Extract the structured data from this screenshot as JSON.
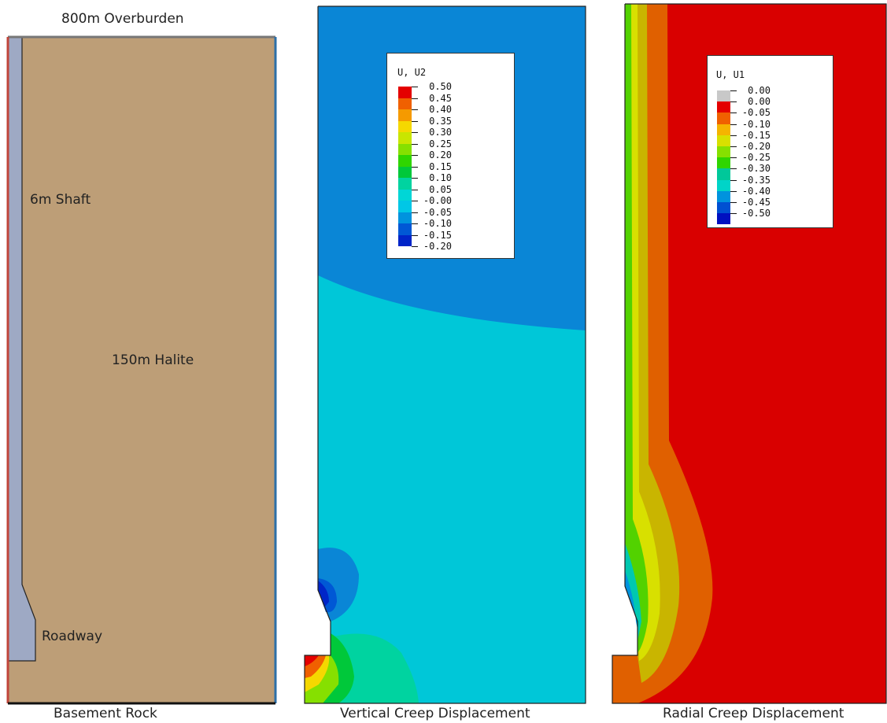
{
  "geometry_panel": {
    "top_label": "800m Overburden",
    "shaft_label": "6m Shaft",
    "halite_label": "150m Halite",
    "roadway_label": "Roadway",
    "caption": "Basement Rock",
    "colors": {
      "halite": "#bd9e77",
      "shaft": "#9ea9c4",
      "left_edge": "#c0453a",
      "right_edge": "#2c6fa8"
    }
  },
  "vertical_panel": {
    "caption": "Vertical Creep Displacement",
    "legend": {
      "title": "U, U2",
      "levels": [
        "0.50",
        "0.45",
        "0.40",
        "0.35",
        "0.30",
        "0.25",
        "0.20",
        "0.15",
        "0.10",
        "0.05",
        "-0.00",
        "-0.05",
        "-0.10",
        "-0.15",
        "-0.20"
      ],
      "colors": [
        "#e40000",
        "#f06000",
        "#f59a00",
        "#f5d800",
        "#c9e600",
        "#86e000",
        "#2fd500",
        "#00c83a",
        "#00d3a0",
        "#00d6d6",
        "#00c7e6",
        "#0093de",
        "#0058d5",
        "#0025c8"
      ]
    }
  },
  "radial_panel": {
    "caption": "Radial Creep Displacement",
    "legend": {
      "title": "U, U1",
      "levels": [
        "0.00",
        "0.00",
        "-0.05",
        "-0.10",
        "-0.15",
        "-0.20",
        "-0.25",
        "-0.30",
        "-0.35",
        "-0.40",
        "-0.45",
        "-0.50"
      ],
      "colors": [
        "#c8c8c8",
        "#e40000",
        "#f06000",
        "#f5b400",
        "#d8e000",
        "#86e000",
        "#2fd500",
        "#00c89a",
        "#00d4c8",
        "#0093de",
        "#0050d2",
        "#0010c0"
      ]
    }
  }
}
